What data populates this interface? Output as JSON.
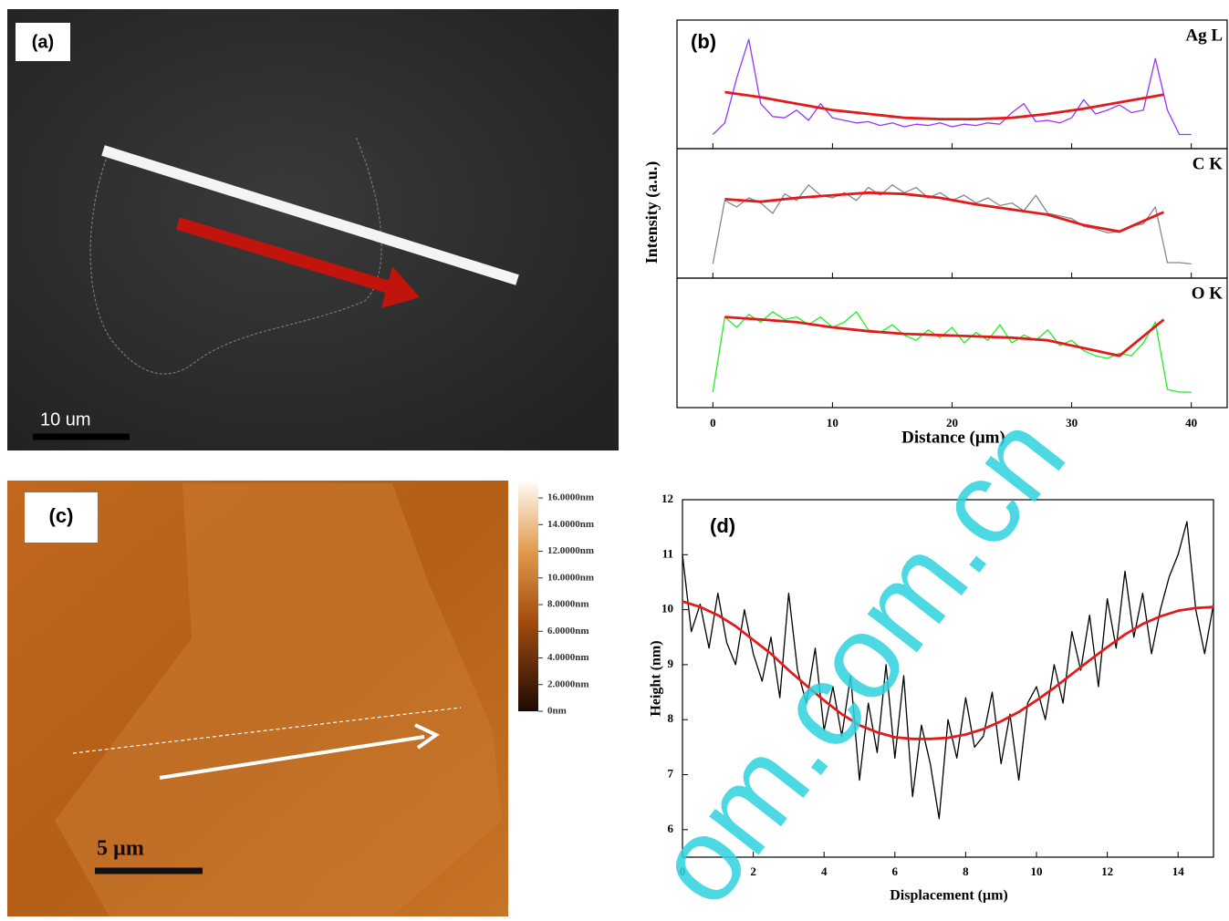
{
  "images": [
    {
      "label": "(a)",
      "scale_bar": "10 um"
    },
    {
      "label": "(c)",
      "scale_bar": "5 µm",
      "clim": [
        0,
        17.1
      ],
      "colorbar_ticks": [
        {
          "value": 16,
          "label": "16.0000nm"
        },
        {
          "value": 14,
          "label": "14.0000nm"
        },
        {
          "value": 12,
          "label": "12.0000nm"
        },
        {
          "value": 10,
          "label": "10.0000nm"
        },
        {
          "value": 8,
          "label": "8.0000nm"
        },
        {
          "value": 6,
          "label": "6.0000nm"
        },
        {
          "value": 4,
          "label": "4.0000nm"
        },
        {
          "value": 2,
          "label": "2.0000nm"
        },
        {
          "value": 0,
          "label": "0nm"
        }
      ]
    }
  ],
  "watermark": "om.com.cn",
  "chart_data": [
    {
      "type": "line",
      "panel_label": "(b)",
      "title": "Ag L",
      "xlim": [
        -3,
        43
      ],
      "ylim": [
        0,
        100
      ],
      "series": [
        {
          "color": "#9933ff",
          "x": [
            0,
            1,
            2,
            3,
            4,
            5,
            6,
            7,
            8,
            9,
            10,
            11,
            12,
            13,
            14,
            15,
            16,
            17,
            18,
            19,
            20,
            21,
            22,
            23,
            24,
            25,
            26,
            27,
            28,
            29,
            30,
            31,
            32,
            33,
            34,
            35,
            36,
            37,
            38,
            39,
            40
          ],
          "values": [
            11,
            20,
            55,
            85,
            35,
            25,
            24,
            30,
            22,
            35,
            24,
            22,
            20,
            21,
            18,
            20,
            17,
            19,
            18,
            20,
            17,
            19,
            18,
            20,
            19,
            28,
            35,
            21,
            22,
            20,
            24,
            38,
            27,
            30,
            34,
            28,
            30,
            70,
            30,
            11,
            11
          ]
        },
        {
          "color": "#e31a1c",
          "x": [
            1,
            4,
            7,
            10,
            13,
            16,
            19,
            22,
            25,
            28,
            31,
            34,
            37.7
          ],
          "values": [
            44,
            40,
            35,
            30,
            27,
            24,
            23,
            23,
            24,
            27,
            31,
            36,
            42
          ]
        }
      ]
    },
    {
      "type": "line",
      "title": "C K",
      "ylabel": "Intensity (a.u.)",
      "xlim": [
        -3,
        43
      ],
      "ylim": [
        0,
        100
      ],
      "series": [
        {
          "color": "#888888",
          "x": [
            0,
            1,
            2,
            3,
            4,
            5,
            6,
            7,
            8,
            9,
            10,
            11,
            12,
            13,
            14,
            15,
            16,
            17,
            18,
            19,
            20,
            21,
            22,
            23,
            24,
            25,
            26,
            27,
            28,
            29,
            30,
            31,
            32,
            33,
            34,
            35,
            36,
            37,
            38,
            39,
            40
          ],
          "values": [
            11,
            60,
            55,
            62,
            58,
            50,
            65,
            60,
            72,
            64,
            62,
            66,
            60,
            70,
            64,
            72,
            66,
            70,
            62,
            66,
            60,
            64,
            58,
            62,
            56,
            58,
            52,
            64,
            50,
            48,
            46,
            40,
            38,
            35,
            36,
            40,
            42,
            55,
            12,
            12,
            11
          ]
        },
        {
          "color": "#e31a1c",
          "x": [
            1,
            4,
            7,
            10,
            13,
            16,
            19,
            22,
            25,
            28,
            31,
            34,
            37.7
          ],
          "values": [
            61,
            59,
            62,
            64,
            66,
            65,
            62,
            57,
            53,
            49,
            41,
            36,
            51
          ]
        }
      ]
    },
    {
      "type": "line",
      "title": "O K",
      "xlabel": "Distance (μm)",
      "xlim": [
        -3,
        43
      ],
      "ylim": [
        0,
        100
      ],
      "xticks": [
        0,
        10,
        20,
        30,
        40
      ],
      "series": [
        {
          "color": "#22ee22",
          "x": [
            0,
            1,
            2,
            3,
            4,
            5,
            6,
            7,
            8,
            9,
            10,
            11,
            12,
            13,
            14,
            15,
            16,
            17,
            18,
            19,
            20,
            21,
            22,
            23,
            24,
            25,
            26,
            27,
            28,
            29,
            30,
            31,
            32,
            33,
            34,
            35,
            36,
            37,
            38,
            39,
            40
          ],
          "values": [
            12,
            70,
            62,
            72,
            66,
            74,
            68,
            70,
            64,
            70,
            62,
            66,
            74,
            60,
            58,
            64,
            56,
            52,
            60,
            54,
            62,
            50,
            58,
            52,
            64,
            50,
            56,
            52,
            60,
            48,
            52,
            44,
            40,
            38,
            42,
            40,
            50,
            66,
            14,
            12,
            12
          ]
        },
        {
          "color": "#e31a1c",
          "x": [
            1,
            4,
            7,
            10,
            13,
            16,
            19,
            22,
            25,
            28,
            31,
            34,
            37.7
          ],
          "values": [
            70,
            68,
            66,
            62,
            59,
            57,
            56,
            55,
            54,
            52,
            46,
            40,
            68
          ]
        }
      ]
    },
    {
      "type": "line",
      "panel_label": "(d)",
      "xlabel": "Displacement (μm)",
      "ylabel": "Height (nm)",
      "xlim": [
        0,
        15
      ],
      "ylim": [
        5.5,
        12
      ],
      "xticks": [
        0,
        2,
        4,
        6,
        8,
        10,
        12,
        14
      ],
      "yticks": [
        6,
        7,
        8,
        9,
        10,
        11,
        12
      ],
      "series": [
        {
          "color": "#000000",
          "x": [
            0,
            0.25,
            0.5,
            0.75,
            1,
            1.25,
            1.5,
            1.75,
            2,
            2.25,
            2.5,
            2.75,
            3,
            3.25,
            3.5,
            3.75,
            4,
            4.25,
            4.5,
            4.75,
            5,
            5.25,
            5.5,
            5.75,
            6,
            6.25,
            6.5,
            6.75,
            7,
            7.25,
            7.5,
            7.75,
            8,
            8.25,
            8.5,
            8.75,
            9,
            9.25,
            9.5,
            9.75,
            10,
            10.25,
            10.5,
            10.75,
            11,
            11.25,
            11.5,
            11.75,
            12,
            12.25,
            12.5,
            12.75,
            13,
            13.25,
            13.5,
            13.75,
            14,
            14.25,
            14.5,
            14.75,
            15
          ],
          "values": [
            11.0,
            9.6,
            10.1,
            9.3,
            10.3,
            9.4,
            9.0,
            10.0,
            9.2,
            8.7,
            9.5,
            8.4,
            10.3,
            8.9,
            8.3,
            9.3,
            7.8,
            8.6,
            7.7,
            8.8,
            6.9,
            8.3,
            7.4,
            9.0,
            7.3,
            8.8,
            6.6,
            7.9,
            7.2,
            6.2,
            8.0,
            7.3,
            8.4,
            7.5,
            7.7,
            8.5,
            7.2,
            8.1,
            6.9,
            8.3,
            8.6,
            8.0,
            9.0,
            8.3,
            9.6,
            8.9,
            9.9,
            8.6,
            10.2,
            9.3,
            10.7,
            9.5,
            10.3,
            9.2,
            10.0,
            10.6,
            11.0,
            11.6,
            10.0,
            9.2,
            10.1
          ]
        },
        {
          "color": "#e31a1c",
          "x": [
            0,
            0.5,
            1,
            1.5,
            2,
            2.5,
            3,
            3.5,
            4,
            4.5,
            5,
            5.5,
            6,
            6.5,
            7,
            7.5,
            8,
            8.5,
            9,
            9.5,
            10,
            10.5,
            11,
            11.5,
            12,
            12.5,
            13,
            13.5,
            14,
            14.5,
            15
          ],
          "values": [
            10.15,
            10.05,
            9.9,
            9.7,
            9.45,
            9.2,
            8.9,
            8.62,
            8.35,
            8.1,
            7.9,
            7.77,
            7.68,
            7.65,
            7.65,
            7.67,
            7.73,
            7.83,
            7.97,
            8.14,
            8.35,
            8.58,
            8.83,
            9.08,
            9.32,
            9.55,
            9.74,
            9.88,
            9.98,
            10.03,
            10.05
          ]
        }
      ]
    }
  ]
}
